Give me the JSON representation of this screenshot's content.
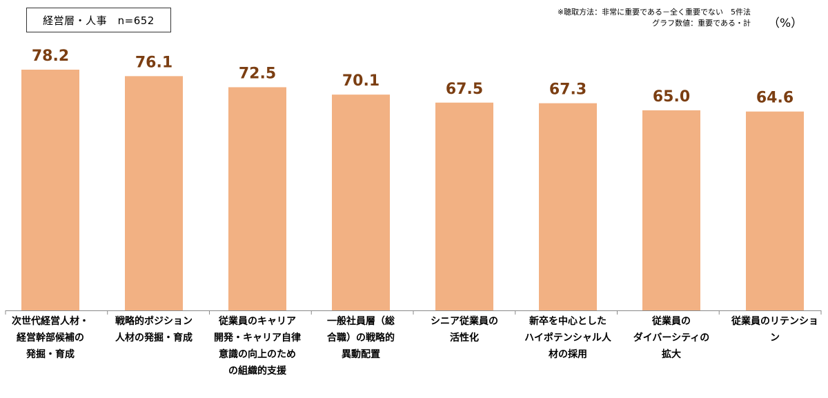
{
  "header": {
    "sample_label": "経営層・人事　n=652",
    "method_note": "※聴取方法：非常に重要である－全く重要でない　5件法",
    "graph_note": "グラフ数値：重要である・計",
    "unit": "（%）"
  },
  "colors": {
    "bar": "#F2B183",
    "value_label": "#7B3E12",
    "axis": "#888888"
  },
  "chart_data": {
    "type": "bar",
    "title": "",
    "xlabel": "",
    "ylabel": "",
    "ylim": [
      0,
      100
    ],
    "grid": false,
    "categories": [
      "次世代経営人材・経営幹部候補の発掘・育成",
      "戦略的ポジション人材の発掘・育成",
      "従業員のキャリア開発・キャリア自律意識の向上のための組織的支援",
      "一般社員層（総合職）の戦略的異動配置",
      "シニア従業員の活性化",
      "新卒を中心としたハイポテンシャル人材の採用",
      "従業員のダイバーシティの拡大",
      "従業員のリテンション"
    ],
    "category_label_lines": [
      [
        "次世代経営人材・",
        "経営幹部候補の",
        "発掘・育成"
      ],
      [
        "戦略的ポジション",
        "人材の発掘・育成"
      ],
      [
        "従業員のキャリア",
        "開発・キャリア自律",
        "意識の向上のため",
        "の組織的支援"
      ],
      [
        "一般社員層（総",
        "合職）の戦略的",
        "異動配置"
      ],
      [
        "シニア従業員の",
        "活性化"
      ],
      [
        "新卒を中心とした",
        "ハイポテンシャル人",
        "材の採用"
      ],
      [
        "従業員の",
        "ダイバーシティの",
        "拡大"
      ],
      [
        "従業員のリテンショ",
        "ン"
      ]
    ],
    "values": [
      78.2,
      76.1,
      72.5,
      70.1,
      67.5,
      67.3,
      65.0,
      64.6
    ],
    "value_labels": [
      "78.2",
      "76.1",
      "72.5",
      "70.1",
      "67.5",
      "67.3",
      "65.0",
      "64.6"
    ]
  }
}
